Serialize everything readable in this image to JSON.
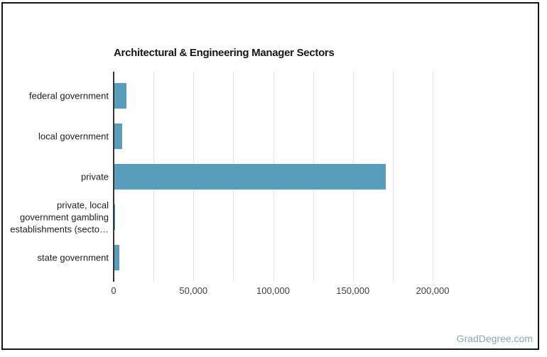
{
  "card": {
    "watermark": "GradDegree.com"
  },
  "chart_data": {
    "type": "bar",
    "orientation": "horizontal",
    "title": "Architectural & Engineering Manager Sectors",
    "categories": [
      "federal government",
      "local government",
      "private",
      "private, local government gambling establishments (secto…",
      "state government"
    ],
    "category_lines": [
      [
        "federal government"
      ],
      [
        "local government"
      ],
      [
        "private"
      ],
      [
        "private, local",
        "government gambling",
        "establishments (secto…"
      ],
      [
        "state government"
      ]
    ],
    "values": [
      7400,
      4900,
      170000,
      300,
      3300
    ],
    "xlabel": "",
    "ylabel": "",
    "xlim": [
      0,
      200000
    ],
    "grid_step": 25000,
    "xticks": [
      0,
      50000,
      100000,
      150000,
      200000
    ],
    "xtick_labels": [
      "0",
      "50,000",
      "100,000",
      "150,000",
      "200,000"
    ],
    "grid": true,
    "legend": "none",
    "bar_color": "#599dbd",
    "gridline_color": "#e2e2e2",
    "baseline_color": "#333333",
    "title_color": "#161616",
    "tick_label_color": "#404040",
    "category_label_color": "#212121",
    "watermark_color": "#8aa6c2",
    "frame_color": "#141414"
  }
}
